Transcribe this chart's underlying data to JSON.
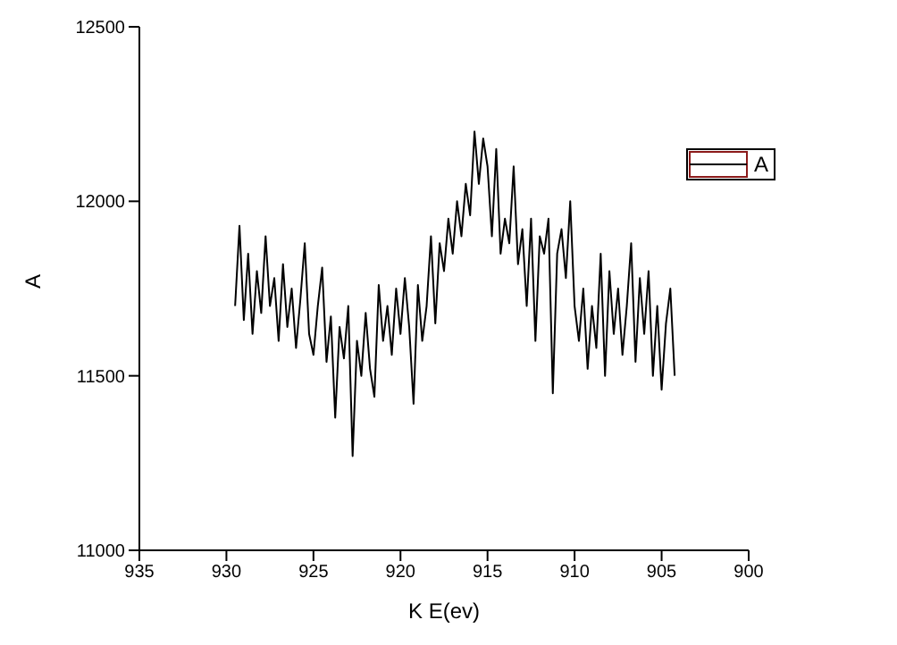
{
  "chart_data": {
    "type": "line",
    "xlabel": "K E(ev)",
    "ylabel": "A",
    "xlim": [
      935,
      900
    ],
    "xticks": [
      935,
      930,
      925,
      920,
      915,
      910,
      905,
      900
    ],
    "ylim": [
      11000,
      12500
    ],
    "yticks": [
      11000,
      11500,
      12000,
      12500
    ],
    "grid": false,
    "legend": "top right",
    "marker": "none",
    "line_style": "solid",
    "x": [
      929.5,
      929.25,
      929,
      928.75,
      928.5,
      928.25,
      928,
      927.75,
      927.5,
      927.25,
      927,
      926.75,
      926.5,
      926.25,
      926,
      925.75,
      925.5,
      925.25,
      925,
      924.75,
      924.5,
      924.25,
      924,
      923.75,
      923.5,
      923.25,
      923,
      922.75,
      922.5,
      922.25,
      922,
      921.75,
      921.5,
      921.25,
      921,
      920.75,
      920.5,
      920.25,
      920,
      919.75,
      919.5,
      919.25,
      919,
      918.75,
      918.5,
      918.25,
      918,
      917.75,
      917.5,
      917.25,
      917,
      916.75,
      916.5,
      916.25,
      916,
      915.75,
      915.5,
      915.25,
      915,
      914.75,
      914.5,
      914.25,
      914,
      913.75,
      913.5,
      913.25,
      913,
      912.75,
      912.5,
      912.25,
      912,
      911.75,
      911.5,
      911.25,
      911,
      910.75,
      910.5,
      910.25,
      910,
      909.75,
      909.5,
      909.25,
      909,
      908.75,
      908.5,
      908.25,
      908,
      907.75,
      907.5,
      907.25,
      907,
      906.75,
      906.5,
      906.25,
      906,
      905.75,
      905.5,
      905.25,
      905,
      904.75,
      904.5,
      904.25
    ],
    "series": [
      {
        "name": "A",
        "color": "#000000",
        "values": [
          11700,
          11930,
          11660,
          11850,
          11620,
          11800,
          11680,
          11900,
          11700,
          11780,
          11600,
          11820,
          11640,
          11750,
          11580,
          11720,
          11880,
          11620,
          11560,
          11700,
          11810,
          11540,
          11670,
          11380,
          11640,
          11550,
          11700,
          11270,
          11600,
          11500,
          11680,
          11520,
          11440,
          11760,
          11600,
          11700,
          11560,
          11750,
          11620,
          11780,
          11640,
          11420,
          11760,
          11600,
          11700,
          11900,
          11650,
          11880,
          11800,
          11950,
          11850,
          12000,
          11900,
          12050,
          11960,
          12200,
          12050,
          12180,
          12100,
          11900,
          12150,
          11850,
          11950,
          11880,
          12100,
          11820,
          11920,
          11700,
          11950,
          11600,
          11900,
          11850,
          11950,
          11450,
          11850,
          11920,
          11780,
          12000,
          11700,
          11600,
          11750,
          11520,
          11700,
          11580,
          11850,
          11500,
          11800,
          11620,
          11750,
          11560,
          11700,
          11880,
          11540,
          11780,
          11620,
          11800,
          11500,
          11700,
          11460,
          11650,
          11750,
          11500
        ]
      }
    ]
  }
}
